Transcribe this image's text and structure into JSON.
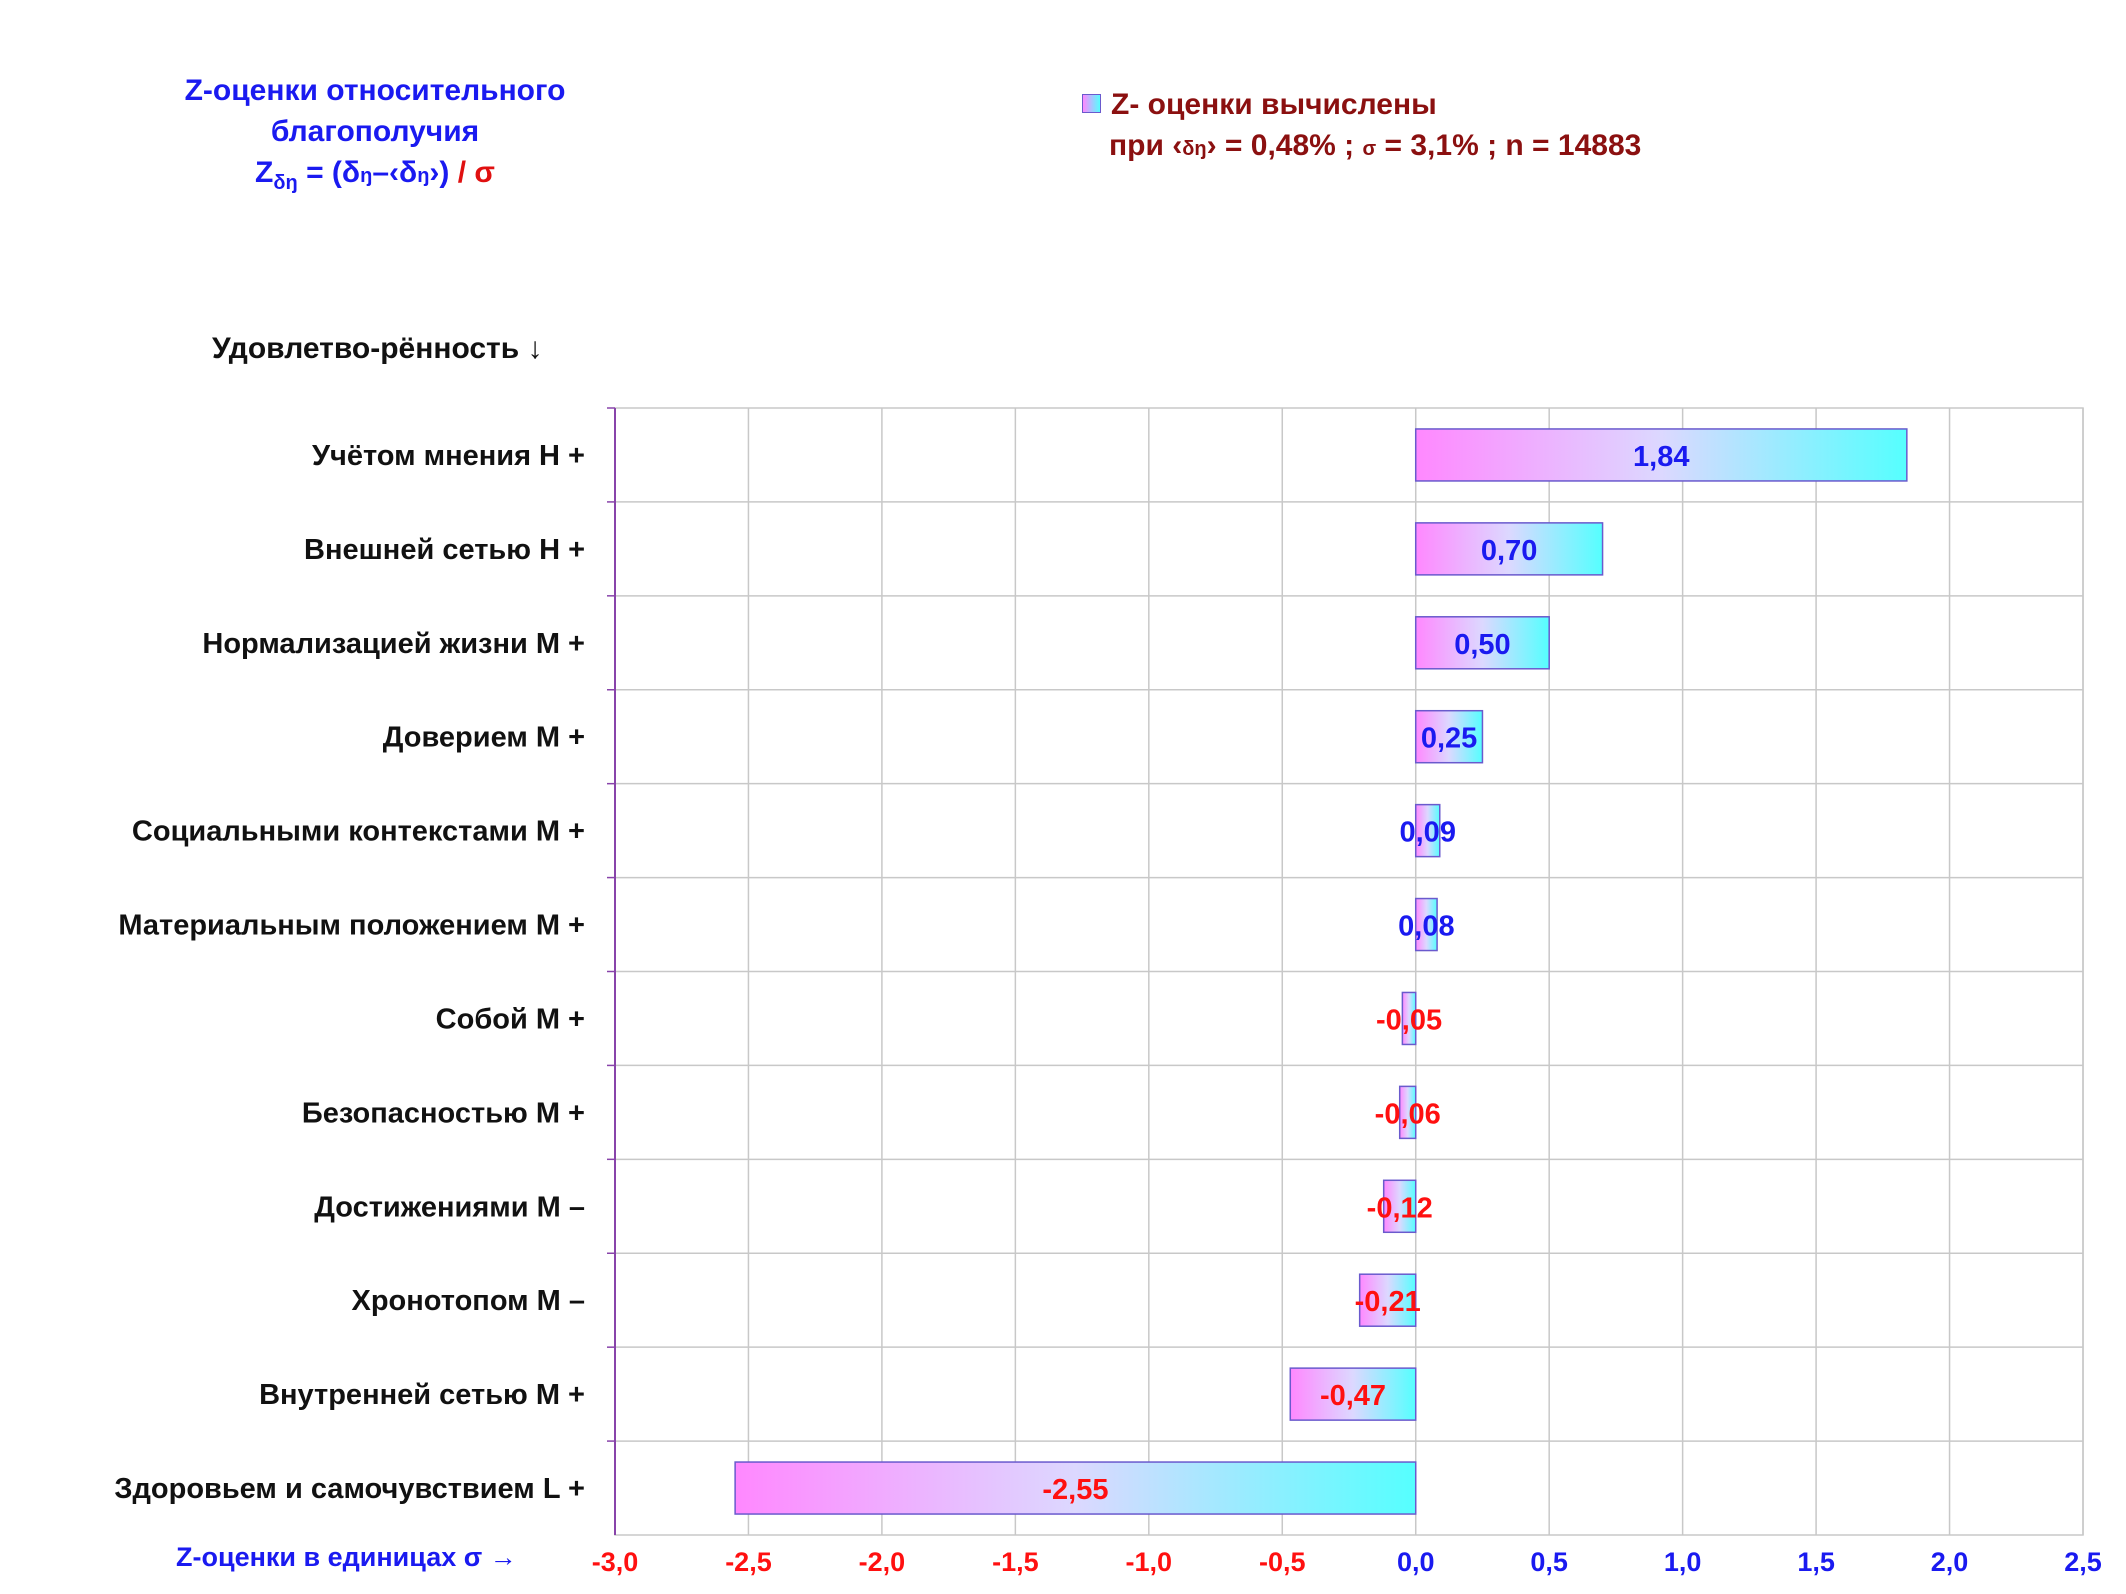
{
  "header": {
    "title_line1": "Z-оценки  относительного",
    "title_line2": "благополучия",
    "formula_lhs": "Z",
    "formula_sub": "δ",
    "formula_sub2": "ŋ",
    "formula_rhs_1": " = (δ",
    "formula_rhs_2": "ŋ",
    "formula_rhs_3": "–‹δ",
    "formula_rhs_4": "ŋ",
    "formula_rhs_5": "›)",
    "formula_rhs_6": " / σ"
  },
  "legend": {
    "line1": "Z- оценки вычислены",
    "line2_a": "при ‹",
    "line2_b": "δ",
    "line2_c": "ŋ",
    "line2_d": "› = 0,48% ; ",
    "line2_e": "σ",
    "line2_f": " = 3,1% ; n = 14883"
  },
  "y_axis_title": "Удовлетво-рённость ↓",
  "x_axis_title": "Z-оценки в единицах σ →",
  "colors": {
    "bar_gradient_start": "#ff88ff",
    "bar_gradient_end": "#55ffff",
    "positive_label": "#1a1af0",
    "negative_label": "#ff1010",
    "axis": "#8844aa",
    "grid": "#c8c8c8"
  },
  "chart_data": {
    "type": "bar",
    "orientation": "horizontal",
    "categories": [
      "Учётом мнения  Н +",
      "Внешней сетью  Н +",
      "Нормализацией жизни  М +",
      "Доверием  М +",
      "Социальными контекстами  М +",
      "Материальным положением  М +",
      "Собой  М +",
      "Безопасностью  М +",
      "Достижениями  М –",
      "Хронотопом  М –",
      "Внутренней сетью  М +",
      "Здоровьем и самочувствием  L +"
    ],
    "values": [
      1.84,
      0.7,
      0.5,
      0.25,
      0.09,
      0.08,
      -0.05,
      -0.06,
      -0.12,
      -0.21,
      -0.47,
      -2.55
    ],
    "value_labels": [
      "1,84",
      "0,70",
      "0,50",
      "0,25",
      "0,09",
      "0,08",
      "-0,05",
      "-0,06",
      "-0,12",
      "-0,21",
      "-0,47",
      "-2,55"
    ],
    "xlim": [
      -3.0,
      2.5
    ],
    "x_ticks": [
      -3.0,
      -2.5,
      -2.0,
      -1.5,
      -1.0,
      -0.5,
      0.0,
      0.5,
      1.0,
      1.5,
      2.0,
      2.5
    ],
    "x_tick_labels": [
      "-3,0",
      "-2,5",
      "-2,0",
      "-1,5",
      "-1,0",
      "-0,5",
      "0,0",
      "0,5",
      "1,0",
      "1,5",
      "2,0",
      "2,5"
    ],
    "grid": true,
    "legend_position": "top-right"
  }
}
